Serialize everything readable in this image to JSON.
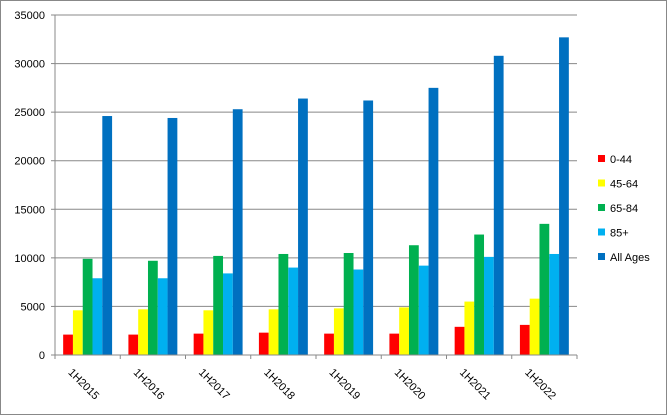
{
  "chart_data": {
    "type": "bar",
    "categories": [
      "1H2015",
      "1H2016",
      "1H2017",
      "1H2018",
      "1H2019",
      "1H2020",
      "1H2021",
      "1H2022"
    ],
    "series": [
      {
        "name": "0-44",
        "color": "#ff0000",
        "values": [
          2100,
          2100,
          2200,
          2300,
          2200,
          2200,
          2900,
          3100
        ]
      },
      {
        "name": "45-64",
        "color": "#ffff00",
        "values": [
          4600,
          4700,
          4600,
          4700,
          4800,
          4900,
          5500,
          5800
        ]
      },
      {
        "name": "65-84",
        "color": "#00b050",
        "values": [
          9900,
          9700,
          10200,
          10400,
          10500,
          11300,
          12400,
          13500
        ]
      },
      {
        "name": "85+",
        "color": "#00b0f0",
        "values": [
          7900,
          7900,
          8400,
          9000,
          8800,
          9200,
          10100,
          10400
        ]
      },
      {
        "name": "All Ages",
        "color": "#0070c0",
        "values": [
          24600,
          24400,
          25300,
          26400,
          26200,
          27500,
          30800,
          32700
        ]
      }
    ],
    "ylim": [
      0,
      35000
    ],
    "yticks": [
      0,
      5000,
      10000,
      15000,
      20000,
      25000,
      30000,
      35000
    ],
    "grid": true,
    "legend": "right"
  }
}
